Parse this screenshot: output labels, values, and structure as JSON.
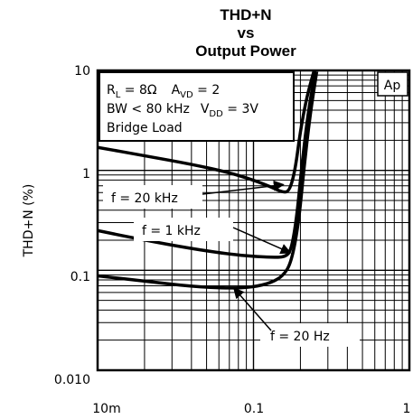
{
  "chart_data": {
    "type": "line",
    "title_lines": [
      "THD+N",
      "vs",
      "Output Power"
    ],
    "ylabel": "THD+N (%)",
    "xlabel": "",
    "xscale": "log",
    "yscale": "log",
    "xlim": [
      0.01,
      1
    ],
    "ylim": [
      0.01,
      10
    ],
    "grid": true,
    "x_ticks": [
      {
        "value": 0.01,
        "label": "10m"
      },
      {
        "value": 0.1,
        "label": "0.1"
      },
      {
        "value": 1,
        "label": "1"
      }
    ],
    "y_ticks": [
      {
        "value": 10,
        "label": "10"
      },
      {
        "value": 1,
        "label": "1"
      },
      {
        "value": 0.1,
        "label": "0.1"
      },
      {
        "value": 0.01,
        "label": "0.010"
      }
    ],
    "conditions": {
      "line1": {
        "rl_main": "R",
        "rl_sub": "L",
        "rl_val": " = 8Ω",
        "avd_main": "A",
        "avd_sub": "VD",
        "avd_val": " = 2"
      },
      "line2": {
        "bw": "BW < 80 kHz",
        "vdd_main": "V",
        "vdd_sub": "DD",
        "vdd_val": " = 3V"
      },
      "line3": "Bridge Load"
    },
    "badge": "Ap",
    "series": [
      {
        "name": "f = 20 kHz",
        "points": [
          [
            0.01,
            1.7
          ],
          [
            0.02,
            1.4
          ],
          [
            0.04,
            1.15
          ],
          [
            0.07,
            0.95
          ],
          [
            0.1,
            0.8
          ],
          [
            0.13,
            0.68
          ],
          [
            0.155,
            0.6
          ],
          [
            0.17,
            0.62
          ],
          [
            0.185,
            1.0
          ],
          [
            0.2,
            2.5
          ],
          [
            0.22,
            5.5
          ],
          [
            0.245,
            10
          ]
        ]
      },
      {
        "name": "f = 1 kHz",
        "points": [
          [
            0.01,
            0.25
          ],
          [
            0.02,
            0.2
          ],
          [
            0.04,
            0.165
          ],
          [
            0.07,
            0.145
          ],
          [
            0.1,
            0.138
          ],
          [
            0.13,
            0.135
          ],
          [
            0.16,
            0.135
          ],
          [
            0.175,
            0.16
          ],
          [
            0.19,
            0.35
          ],
          [
            0.205,
            1.2
          ],
          [
            0.225,
            4.0
          ],
          [
            0.25,
            10
          ]
        ]
      },
      {
        "name": "f = 20 Hz",
        "points": [
          [
            0.01,
            0.088
          ],
          [
            0.02,
            0.078
          ],
          [
            0.04,
            0.069
          ],
          [
            0.07,
            0.066
          ],
          [
            0.1,
            0.068
          ],
          [
            0.13,
            0.075
          ],
          [
            0.155,
            0.088
          ],
          [
            0.175,
            0.12
          ],
          [
            0.195,
            0.3
          ],
          [
            0.21,
            1.0
          ],
          [
            0.23,
            3.5
          ],
          [
            0.255,
            10
          ]
        ]
      }
    ],
    "annotations": [
      {
        "text": "f = 20 kHz",
        "series": 0,
        "arrow_to": [
          0.155,
          0.72
        ]
      },
      {
        "text": "f = 1 kHz",
        "series": 1,
        "arrow_to": [
          0.172,
          0.15
        ]
      },
      {
        "text": "f = 20 Hz",
        "series": 2,
        "arrow_to": [
          0.075,
          0.066
        ]
      }
    ]
  }
}
